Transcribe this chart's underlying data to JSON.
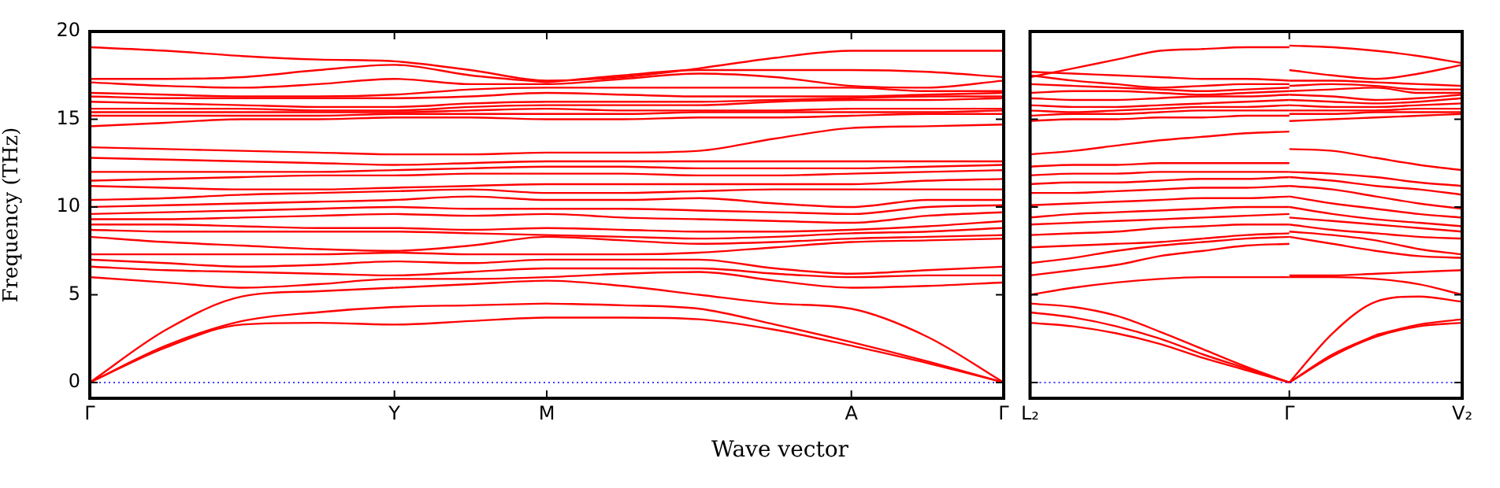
{
  "chart_data": [
    {
      "type": "line",
      "ylabel": "Frequency (THz)",
      "xlabel": "Wave vector",
      "categories": [
        "Γ",
        null,
        null,
        null,
        "Y",
        null,
        "M",
        null,
        null,
        null,
        "A",
        null,
        "Γ"
      ],
      "ylim": [
        -0.9,
        20
      ],
      "yticks": [
        0,
        5,
        10,
        15,
        20
      ],
      "legend": false,
      "marker": "none",
      "line_style": "solid",
      "ref_lines": [
        {
          "axis": "y",
          "value": 0,
          "color": "#0000ff",
          "line_style": "dotted"
        }
      ],
      "series": [
        {
          "color": "#ff0000",
          "values": [
            0,
            2.0,
            3.3,
            3.4,
            3.3,
            3.5,
            3.7,
            3.7,
            3.6,
            3.0,
            2.1,
            null,
            null
          ]
        },
        {
          "color": "#ff0000",
          "values": [
            null,
            null,
            null,
            null,
            null,
            null,
            null,
            null,
            null,
            null,
            2.1,
            1.1,
            0
          ]
        },
        {
          "color": "#ff0000",
          "values": [
            0,
            2.1,
            3.5,
            4.0,
            4.3,
            4.4,
            4.5,
            null,
            null,
            null,
            null,
            null,
            null
          ]
        },
        {
          "color": "#ff0000",
          "values": [
            null,
            null,
            null,
            null,
            null,
            null,
            4.5,
            4.4,
            4.2,
            3.3,
            2.3,
            1.2,
            0
          ]
        },
        {
          "color": "#ff0000",
          "values": [
            0,
            3.0,
            4.9,
            5.2,
            5.4,
            null,
            null,
            null,
            null,
            null,
            null,
            null,
            null
          ]
        },
        {
          "color": "#ff0000",
          "values": [
            null,
            null,
            null,
            null,
            5.4,
            5.6,
            5.8,
            5.5,
            5.0,
            4.5,
            4.2,
            2.6,
            0
          ]
        },
        {
          "color": "#ff0000",
          "values": [
            6.0,
            5.7,
            5.4,
            5.6,
            5.9,
            5.9,
            6.0,
            6.2,
            6.3,
            5.8,
            5.4,
            5.5,
            5.7
          ]
        },
        {
          "color": "#ff0000",
          "values": [
            6.6,
            6.4,
            6.3,
            6.2,
            6.1,
            6.3,
            6.5,
            6.5,
            6.5,
            6.2,
            6.0,
            6.1,
            6.1
          ]
        },
        {
          "color": "#ff0000",
          "values": [
            7.0,
            6.8,
            6.6,
            6.7,
            6.9,
            6.8,
            7.0,
            7.0,
            7.0,
            6.5,
            6.2,
            6.4,
            6.6
          ]
        },
        {
          "color": "#ff0000",
          "values": [
            7.3,
            7.3,
            7.3,
            7.3,
            7.4,
            7.3,
            7.3,
            7.3,
            7.4,
            7.7,
            8.0,
            8.1,
            8.2
          ]
        },
        {
          "color": "#ff0000",
          "values": [
            8.3,
            8.0,
            7.8,
            7.6,
            7.5,
            7.8,
            8.3,
            8.1,
            7.9,
            8.0,
            8.2,
            8.3,
            8.4
          ]
        },
        {
          "color": "#ff0000",
          "values": [
            8.7,
            8.6,
            8.6,
            8.6,
            8.6,
            8.5,
            8.4,
            8.3,
            8.2,
            8.3,
            8.5,
            8.6,
            8.8
          ]
        },
        {
          "color": "#ff0000",
          "values": [
            9.0,
            9.0,
            8.9,
            8.8,
            8.8,
            8.7,
            8.8,
            8.7,
            8.6,
            8.6,
            8.7,
            8.9,
            9.2
          ]
        },
        {
          "color": "#ff0000",
          "values": [
            9.3,
            9.3,
            9.4,
            9.5,
            9.6,
            9.5,
            9.6,
            9.4,
            9.3,
            9.2,
            9.1,
            9.5,
            9.7
          ]
        },
        {
          "color": "#ff0000",
          "values": [
            9.6,
            9.7,
            9.8,
            9.9,
            10.0,
            9.9,
            9.9,
            9.9,
            9.8,
            9.7,
            9.6,
            10.0,
            10.1
          ]
        },
        {
          "color": "#ff0000",
          "values": [
            10.0,
            10.1,
            10.2,
            10.3,
            10.4,
            10.6,
            10.4,
            10.4,
            10.5,
            10.2,
            10.0,
            10.4,
            10.4
          ]
        },
        {
          "color": "#ff0000",
          "values": [
            10.4,
            10.5,
            10.7,
            10.8,
            10.9,
            11.0,
            10.8,
            10.8,
            10.9,
            11.0,
            11.0,
            11.0,
            11.0
          ]
        },
        {
          "color": "#ff0000",
          "values": [
            11.2,
            11.1,
            11.0,
            11.0,
            11.1,
            11.2,
            11.3,
            11.3,
            11.3,
            11.3,
            11.3,
            11.5,
            11.6
          ]
        },
        {
          "color": "#ff0000",
          "values": [
            11.5,
            11.6,
            11.7,
            11.8,
            11.8,
            11.9,
            11.9,
            11.9,
            11.8,
            11.8,
            11.9,
            12.0,
            12.1
          ]
        },
        {
          "color": "#ff0000",
          "values": [
            12.0,
            12.0,
            12.0,
            12.0,
            12.1,
            12.2,
            12.3,
            12.3,
            12.2,
            12.2,
            12.2,
            12.3,
            12.4
          ]
        },
        {
          "color": "#ff0000",
          "values": [
            12.8,
            12.7,
            12.6,
            12.5,
            12.4,
            12.5,
            12.6,
            12.6,
            12.6,
            12.6,
            12.6,
            12.6,
            12.6
          ]
        },
        {
          "color": "#ff0000",
          "values": [
            13.4,
            13.3,
            13.2,
            13.1,
            13.0,
            13.0,
            13.1,
            13.1,
            13.2,
            13.9,
            14.5,
            14.6,
            14.7
          ]
        },
        {
          "color": "#ff0000",
          "values": [
            14.6,
            14.8,
            15.0,
            15.0,
            15.1,
            15.1,
            15.0,
            15.0,
            15.1,
            15.1,
            15.2,
            15.3,
            15.3
          ]
        },
        {
          "color": "#ff0000",
          "values": [
            15.2,
            15.2,
            15.2,
            15.2,
            15.3,
            15.3,
            15.3,
            15.3,
            15.4,
            15.4,
            15.4,
            15.4,
            15.5
          ]
        },
        {
          "color": "#ff0000",
          "values": [
            15.4,
            15.4,
            15.4,
            15.4,
            15.4,
            15.5,
            15.6,
            15.5,
            15.5,
            15.5,
            15.6,
            15.6,
            15.6
          ]
        },
        {
          "color": "#ff0000",
          "values": [
            15.6,
            15.6,
            15.6,
            15.5,
            15.5,
            15.7,
            15.8,
            15.8,
            15.8,
            16.0,
            16.1,
            16.1,
            16.2
          ]
        },
        {
          "color": "#ff0000",
          "values": [
            16.0,
            15.9,
            15.8,
            15.7,
            15.7,
            15.9,
            16.0,
            16.0,
            16.0,
            16.1,
            16.2,
            16.3,
            16.3
          ]
        },
        {
          "color": "#ff0000",
          "values": [
            16.3,
            16.2,
            16.2,
            16.2,
            16.2,
            16.3,
            16.5,
            16.4,
            16.3,
            16.3,
            16.3,
            16.4,
            16.5
          ]
        },
        {
          "color": "#ff0000",
          "values": [
            16.5,
            16.4,
            16.3,
            16.3,
            16.4,
            16.7,
            16.8,
            16.8,
            16.8,
            16.8,
            16.8,
            16.6,
            16.6
          ]
        },
        {
          "color": "#ff0000",
          "values": [
            17.1,
            16.9,
            16.8,
            17.0,
            17.3,
            17.0,
            17.0,
            17.3,
            17.6,
            17.4,
            16.9,
            16.8,
            17.2
          ]
        },
        {
          "color": "#ff0000",
          "values": [
            17.3,
            17.3,
            17.4,
            17.8,
            18.1,
            17.5,
            17.1,
            null,
            null,
            null,
            null,
            null,
            null
          ]
        },
        {
          "color": "#ff0000",
          "values": [
            null,
            null,
            null,
            null,
            null,
            null,
            17.1,
            17.5,
            17.8,
            17.8,
            17.8,
            17.7,
            17.4
          ]
        },
        {
          "color": "#ff0000",
          "values": [
            19.1,
            18.9,
            18.6,
            18.4,
            18.3,
            17.8,
            17.2,
            17.4,
            17.9,
            18.5,
            18.9,
            18.9,
            18.9
          ]
        }
      ]
    },
    {
      "type": "line",
      "categories": [
        "L₂",
        null,
        null,
        null,
        null,
        null,
        "Γ",
        null,
        null,
        null,
        "V₂"
      ],
      "ylim": [
        -0.9,
        20
      ],
      "yticks": [
        0,
        5,
        10,
        15,
        20
      ],
      "tick_labels": "x",
      "legend": false,
      "marker": "none",
      "line_style": "solid",
      "ref_lines": [
        {
          "axis": "y",
          "value": 0,
          "color": "#0000ff",
          "line_style": "dotted"
        }
      ],
      "series": [
        {
          "color": "#ff0000",
          "values": [
            3.4,
            3.2,
            2.8,
            2.2,
            1.4,
            0.7,
            0,
            null,
            null,
            null,
            null
          ]
        },
        {
          "color": "#ff0000",
          "values": [
            4.0,
            3.7,
            3.2,
            2.5,
            1.6,
            0.8,
            0,
            null,
            null,
            null,
            null
          ]
        },
        {
          "color": "#ff0000",
          "values": [
            4.5,
            4.3,
            3.8,
            2.9,
            1.9,
            0.9,
            0,
            null,
            null,
            null,
            null
          ]
        },
        {
          "color": "#ff0000",
          "values": [
            5.0,
            5.4,
            5.7,
            5.9,
            6.0,
            6.0,
            6.0,
            null,
            null,
            null,
            null
          ]
        },
        {
          "color": "#ff0000",
          "values": [
            6.1,
            6.4,
            6.7,
            7.2,
            7.5,
            7.8,
            7.9,
            null,
            null,
            null,
            null
          ]
        },
        {
          "color": "#ff0000",
          "values": [
            6.8,
            7.1,
            7.5,
            7.8,
            8.0,
            8.2,
            8.3,
            null,
            null,
            null,
            null
          ]
        },
        {
          "color": "#ff0000",
          "values": [
            7.7,
            7.8,
            7.9,
            8.0,
            8.2,
            8.4,
            8.5,
            null,
            null,
            null,
            null
          ]
        },
        {
          "color": "#ff0000",
          "values": [
            8.4,
            8.5,
            8.6,
            8.8,
            8.9,
            9.0,
            9.0,
            null,
            null,
            null,
            null
          ]
        },
        {
          "color": "#ff0000",
          "values": [
            9.0,
            9.1,
            9.2,
            9.3,
            9.4,
            9.5,
            9.6,
            null,
            null,
            null,
            null
          ]
        },
        {
          "color": "#ff0000",
          "values": [
            9.4,
            9.6,
            9.7,
            9.8,
            9.9,
            10.0,
            10.0,
            null,
            null,
            null,
            null
          ]
        },
        {
          "color": "#ff0000",
          "values": [
            10.1,
            10.2,
            10.3,
            10.4,
            10.5,
            10.5,
            10.6,
            null,
            null,
            null,
            null
          ]
        },
        {
          "color": "#ff0000",
          "values": [
            10.8,
            10.8,
            10.9,
            11.0,
            11.1,
            11.1,
            11.2,
            null,
            null,
            null,
            null
          ]
        },
        {
          "color": "#ff0000",
          "values": [
            11.3,
            11.4,
            11.4,
            11.5,
            11.6,
            11.6,
            11.7,
            null,
            null,
            null,
            null
          ]
        },
        {
          "color": "#ff0000",
          "values": [
            11.8,
            11.9,
            11.9,
            12.0,
            12.0,
            12.0,
            12.0,
            null,
            null,
            null,
            null
          ]
        },
        {
          "color": "#ff0000",
          "values": [
            12.3,
            12.4,
            12.4,
            12.5,
            12.5,
            12.5,
            12.5,
            null,
            null,
            null,
            null
          ]
        },
        {
          "color": "#ff0000",
          "values": [
            13.0,
            13.2,
            13.5,
            13.8,
            14.0,
            14.2,
            14.3,
            null,
            null,
            null,
            null
          ]
        },
        {
          "color": "#ff0000",
          "values": [
            14.9,
            15.0,
            15.0,
            15.1,
            15.1,
            15.2,
            15.2,
            null,
            null,
            null,
            null
          ]
        },
        {
          "color": "#ff0000",
          "values": [
            15.2,
            15.3,
            15.3,
            15.4,
            15.5,
            15.5,
            15.5,
            null,
            null,
            null,
            null
          ]
        },
        {
          "color": "#ff0000",
          "values": [
            15.5,
            15.4,
            15.5,
            15.6,
            15.7,
            15.7,
            15.8,
            null,
            null,
            null,
            null
          ]
        },
        {
          "color": "#ff0000",
          "values": [
            15.8,
            15.7,
            15.7,
            15.8,
            15.9,
            16.0,
            16.1,
            null,
            null,
            null,
            null
          ]
        },
        {
          "color": "#ff0000",
          "values": [
            16.2,
            16.1,
            16.1,
            16.2,
            16.3,
            16.3,
            16.4,
            null,
            null,
            null,
            null
          ]
        },
        {
          "color": "#ff0000",
          "values": [
            16.5,
            16.6,
            16.6,
            16.5,
            16.4,
            16.5,
            16.6,
            null,
            null,
            null,
            null
          ]
        },
        {
          "color": "#ff0000",
          "values": [
            17.0,
            16.9,
            16.8,
            16.7,
            16.6,
            16.7,
            16.8,
            null,
            null,
            null,
            null
          ]
        },
        {
          "color": "#ff0000",
          "values": [
            17.5,
            17.2,
            17.0,
            16.8,
            16.9,
            17.0,
            17.0,
            null,
            null,
            null,
            null
          ]
        },
        {
          "color": "#ff0000",
          "values": [
            17.7,
            17.6,
            17.5,
            17.4,
            17.3,
            17.3,
            17.2,
            null,
            null,
            null,
            null
          ]
        },
        {
          "color": "#ff0000",
          "values": [
            17.4,
            17.9,
            18.4,
            18.9,
            19.0,
            19.1,
            19.1,
            null,
            null,
            null,
            null
          ]
        },
        {
          "color": "#ff0000",
          "values": [
            null,
            null,
            null,
            null,
            null,
            null,
            0,
            1.5,
            2.6,
            3.2,
            3.4
          ]
        },
        {
          "color": "#ff0000",
          "values": [
            null,
            null,
            null,
            null,
            null,
            null,
            0,
            1.6,
            2.7,
            null,
            null
          ]
        },
        {
          "color": "#ff0000",
          "values": [
            null,
            null,
            null,
            null,
            null,
            null,
            null,
            null,
            2.7,
            3.3,
            3.6
          ]
        },
        {
          "color": "#ff0000",
          "values": [
            null,
            null,
            null,
            null,
            null,
            null,
            0,
            2.8,
            4.6,
            4.9,
            4.6
          ]
        },
        {
          "color": "#ff0000",
          "values": [
            null,
            null,
            null,
            null,
            null,
            null,
            6.0,
            6.0,
            5.9,
            5.6,
            5.0
          ]
        },
        {
          "color": "#ff0000",
          "values": [
            null,
            null,
            null,
            null,
            null,
            null,
            6.1,
            6.1,
            6.2,
            6.3,
            6.4
          ]
        },
        {
          "color": "#ff0000",
          "values": [
            null,
            null,
            null,
            null,
            null,
            null,
            8.3,
            7.9,
            7.5,
            7.2,
            7.1
          ]
        },
        {
          "color": "#ff0000",
          "values": [
            null,
            null,
            null,
            null,
            null,
            null,
            8.6,
            8.4,
            8.1,
            7.6,
            7.3
          ]
        },
        {
          "color": "#ff0000",
          "values": [
            null,
            null,
            null,
            null,
            null,
            null,
            9.0,
            8.7,
            8.5,
            8.3,
            8.2
          ]
        },
        {
          "color": "#ff0000",
          "values": [
            null,
            null,
            null,
            null,
            null,
            null,
            9.4,
            9.2,
            9.0,
            8.8,
            8.6
          ]
        },
        {
          "color": "#ff0000",
          "values": [
            null,
            null,
            null,
            null,
            null,
            null,
            10.0,
            9.6,
            9.3,
            9.1,
            8.9
          ]
        },
        {
          "color": "#ff0000",
          "values": [
            null,
            null,
            null,
            null,
            null,
            null,
            10.6,
            10.2,
            9.9,
            9.6,
            9.4
          ]
        },
        {
          "color": "#ff0000",
          "values": [
            null,
            null,
            null,
            null,
            null,
            null,
            11.2,
            11.0,
            10.6,
            10.2,
            9.9
          ]
        },
        {
          "color": "#ff0000",
          "values": [
            null,
            null,
            null,
            null,
            null,
            null,
            11.7,
            11.5,
            11.2,
            11.0,
            10.7
          ]
        },
        {
          "color": "#ff0000",
          "values": [
            null,
            null,
            null,
            null,
            null,
            null,
            12.0,
            11.9,
            11.7,
            11.4,
            11.2
          ]
        },
        {
          "color": "#ff0000",
          "values": [
            null,
            null,
            null,
            null,
            null,
            null,
            13.3,
            13.2,
            12.8,
            12.4,
            12.1
          ]
        },
        {
          "color": "#ff0000",
          "values": [
            null,
            null,
            null,
            null,
            null,
            null,
            14.9,
            15.0,
            15.1,
            15.2,
            15.3
          ]
        },
        {
          "color": "#ff0000",
          "values": [
            null,
            null,
            null,
            null,
            null,
            null,
            15.3,
            15.3,
            15.4,
            15.4,
            15.4
          ]
        },
        {
          "color": "#ff0000",
          "values": [
            null,
            null,
            null,
            null,
            null,
            null,
            15.5,
            15.5,
            15.5,
            15.6,
            15.6
          ]
        },
        {
          "color": "#ff0000",
          "values": [
            null,
            null,
            null,
            null,
            null,
            null,
            15.8,
            15.7,
            15.7,
            15.8,
            15.9
          ]
        },
        {
          "color": "#ff0000",
          "values": [
            null,
            null,
            null,
            null,
            null,
            null,
            16.1,
            16.0,
            15.9,
            16.0,
            16.2
          ]
        },
        {
          "color": "#ff0000",
          "values": [
            null,
            null,
            null,
            null,
            null,
            null,
            16.4,
            16.3,
            16.1,
            16.2,
            16.4
          ]
        },
        {
          "color": "#ff0000",
          "values": [
            null,
            null,
            null,
            null,
            null,
            null,
            16.6,
            16.7,
            16.8,
            16.5,
            16.5
          ]
        },
        {
          "color": "#ff0000",
          "values": [
            null,
            null,
            null,
            null,
            null,
            null,
            16.9,
            17.0,
            16.9,
            16.7,
            16.7
          ]
        },
        {
          "color": "#ff0000",
          "values": [
            null,
            null,
            null,
            null,
            null,
            null,
            17.2,
            17.2,
            17.1,
            17.0,
            16.9
          ]
        },
        {
          "color": "#ff0000",
          "values": [
            null,
            null,
            null,
            null,
            null,
            null,
            17.8,
            17.5,
            17.3,
            17.6,
            18.1
          ]
        },
        {
          "color": "#ff0000",
          "values": [
            null,
            null,
            null,
            null,
            null,
            null,
            19.2,
            19.1,
            18.9,
            18.6,
            18.2
          ]
        }
      ]
    }
  ]
}
